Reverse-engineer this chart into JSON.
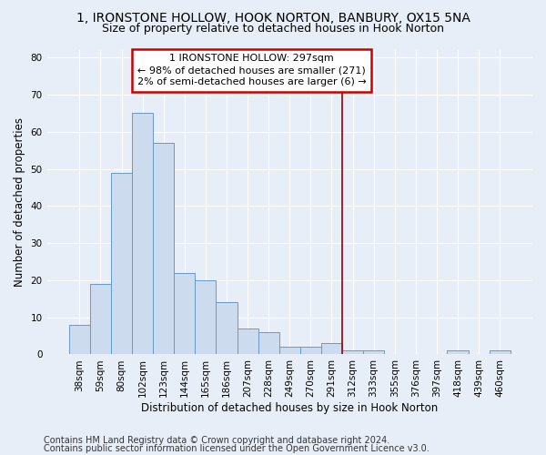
{
  "title_line1": "1, IRONSTONE HOLLOW, HOOK NORTON, BANBURY, OX15 5NA",
  "title_line2": "Size of property relative to detached houses in Hook Norton",
  "xlabel": "Distribution of detached houses by size in Hook Norton",
  "ylabel": "Number of detached properties",
  "categories": [
    "38sqm",
    "59sqm",
    "80sqm",
    "102sqm",
    "123sqm",
    "144sqm",
    "165sqm",
    "186sqm",
    "207sqm",
    "228sqm",
    "249sqm",
    "270sqm",
    "291sqm",
    "312sqm",
    "333sqm",
    "355sqm",
    "376sqm",
    "397sqm",
    "418sqm",
    "439sqm",
    "460sqm"
  ],
  "values": [
    8,
    19,
    49,
    65,
    57,
    22,
    20,
    14,
    7,
    6,
    2,
    2,
    3,
    1,
    1,
    0,
    0,
    0,
    1,
    0,
    1
  ],
  "bar_color": "#ccdcee",
  "bar_edge_color": "#6699cc",
  "vline_x": 12.5,
  "vline_color": "#990000",
  "annotation_box_text": "1 IRONSTONE HOLLOW: 297sqm\n← 98% of detached houses are smaller (271)\n2% of semi-detached houses are larger (6) →",
  "annotation_box_color": "#cc0000",
  "annotation_box_fill": "#ffffff",
  "ylim": [
    0,
    82
  ],
  "yticks": [
    0,
    10,
    20,
    30,
    40,
    50,
    60,
    70,
    80
  ],
  "footer_line1": "Contains HM Land Registry data © Crown copyright and database right 2024.",
  "footer_line2": "Contains public sector information licensed under the Open Government Licence v3.0.",
  "background_color": "#e8eef8",
  "plot_background_color": "#e8eef8",
  "grid_color": "#ffffff",
  "title_fontsize": 10,
  "subtitle_fontsize": 9,
  "axis_label_fontsize": 8.5,
  "tick_fontsize": 7.5,
  "annot_fontsize": 8,
  "footer_fontsize": 7
}
